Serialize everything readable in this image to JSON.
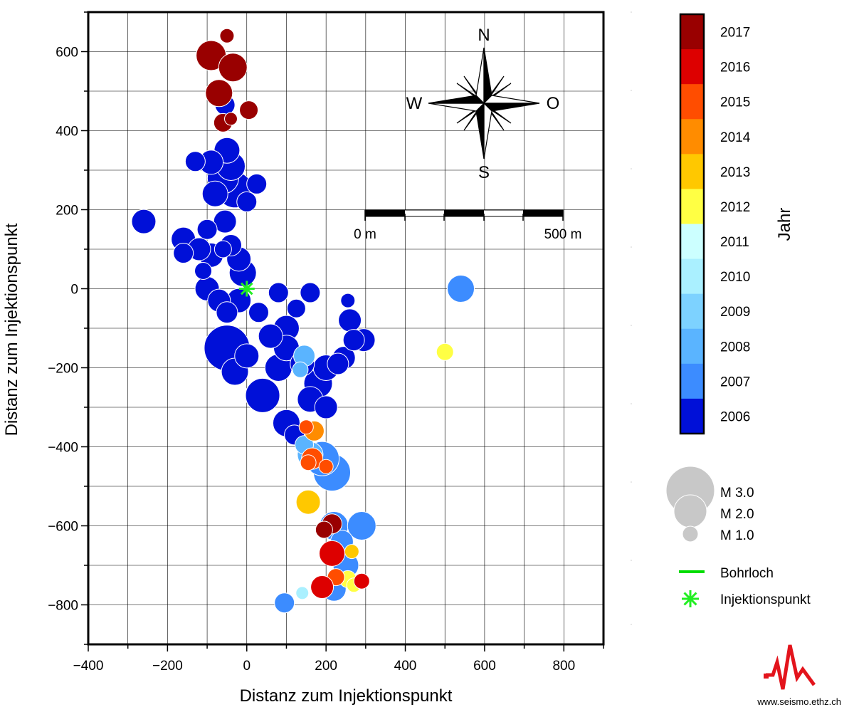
{
  "chart_data": {
    "type": "scatter",
    "xlabel": "Distanz zum Injektionspunkt",
    "ylabel": "Distanz zum Injektionspunkt",
    "xlim": [
      -400,
      900
    ],
    "ylim": [
      -900,
      700
    ],
    "xticks": [
      -400,
      -200,
      0,
      200,
      400,
      600,
      800
    ],
    "yticks": [
      -800,
      -600,
      -400,
      -200,
      0,
      200,
      400,
      600
    ],
    "xtick_labels": [
      "−400",
      "−200",
      "0",
      "200",
      "400",
      "600",
      "800"
    ],
    "ytick_labels": [
      "−800",
      "−600",
      "−400",
      "−200",
      "0",
      "200",
      "400",
      "600"
    ],
    "grid": true,
    "points": [
      {
        "x": -50,
        "y": 640,
        "m": 0.6,
        "year": 2017
      },
      {
        "x": -90,
        "y": 590,
        "m": 1.7,
        "year": 2017
      },
      {
        "x": -35,
        "y": 560,
        "m": 1.6,
        "year": 2017
      },
      {
        "x": -70,
        "y": 495,
        "m": 1.5,
        "year": 2017
      },
      {
        "x": 5,
        "y": 452,
        "m": 0.9,
        "year": 2017
      },
      {
        "x": -60,
        "y": 420,
        "m": 0.9,
        "year": 2017
      },
      {
        "x": -40,
        "y": 430,
        "m": 0.5,
        "year": 2017
      },
      {
        "x": -55,
        "y": 465,
        "m": 1.0,
        "year": 2006
      },
      {
        "x": -130,
        "y": 322,
        "m": 1.0,
        "year": 2006
      },
      {
        "x": -90,
        "y": 320,
        "m": 1.3,
        "year": 2006
      },
      {
        "x": -50,
        "y": 350,
        "m": 1.4,
        "year": 2006
      },
      {
        "x": -40,
        "y": 310,
        "m": 1.6,
        "year": 2006
      },
      {
        "x": -60,
        "y": 280,
        "m": 1.8,
        "year": 2006
      },
      {
        "x": -30,
        "y": 250,
        "m": 2.1,
        "year": 2006
      },
      {
        "x": -80,
        "y": 240,
        "m": 1.4,
        "year": 2006
      },
      {
        "x": 0,
        "y": 220,
        "m": 1.0,
        "year": 2006
      },
      {
        "x": 25,
        "y": 265,
        "m": 1.0,
        "year": 2006
      },
      {
        "x": -260,
        "y": 170,
        "m": 1.3,
        "year": 2006
      },
      {
        "x": -55,
        "y": 170,
        "m": 1.2,
        "year": 2006
      },
      {
        "x": -100,
        "y": 150,
        "m": 1.0,
        "year": 2006
      },
      {
        "x": -160,
        "y": 125,
        "m": 1.3,
        "year": 2006
      },
      {
        "x": -120,
        "y": 100,
        "m": 1.2,
        "year": 2006
      },
      {
        "x": -160,
        "y": 90,
        "m": 1.0,
        "year": 2006
      },
      {
        "x": -90,
        "y": 85,
        "m": 1.3,
        "year": 2006
      },
      {
        "x": -40,
        "y": 110,
        "m": 1.1,
        "year": 2006
      },
      {
        "x": -20,
        "y": 75,
        "m": 1.3,
        "year": 2006
      },
      {
        "x": -60,
        "y": 100,
        "m": 0.8,
        "year": 2006
      },
      {
        "x": -10,
        "y": 40,
        "m": 1.5,
        "year": 2006
      },
      {
        "x": -110,
        "y": 45,
        "m": 0.8,
        "year": 2006
      },
      {
        "x": -100,
        "y": 0,
        "m": 1.3,
        "year": 2006
      },
      {
        "x": -70,
        "y": -30,
        "m": 1.2,
        "year": 2006
      },
      {
        "x": -50,
        "y": -60,
        "m": 1.1,
        "year": 2006
      },
      {
        "x": -20,
        "y": -30,
        "m": 1.3,
        "year": 2006
      },
      {
        "x": 30,
        "y": -60,
        "m": 1.0,
        "year": 2006
      },
      {
        "x": 80,
        "y": -10,
        "m": 1.0,
        "year": 2006
      },
      {
        "x": 160,
        "y": -10,
        "m": 1.0,
        "year": 2006
      },
      {
        "x": 125,
        "y": -50,
        "m": 0.9,
        "year": 2006
      },
      {
        "x": 100,
        "y": -100,
        "m": 1.4,
        "year": 2006
      },
      {
        "x": 60,
        "y": -120,
        "m": 1.3,
        "year": 2006
      },
      {
        "x": -50,
        "y": -150,
        "m": 2.8,
        "year": 2006
      },
      {
        "x": 0,
        "y": -170,
        "m": 1.3,
        "year": 2006
      },
      {
        "x": -30,
        "y": -210,
        "m": 1.5,
        "year": 2006
      },
      {
        "x": 40,
        "y": -270,
        "m": 2.0,
        "year": 2006
      },
      {
        "x": 80,
        "y": -200,
        "m": 1.5,
        "year": 2006
      },
      {
        "x": 100,
        "y": -150,
        "m": 1.4,
        "year": 2006
      },
      {
        "x": 140,
        "y": -190,
        "m": 1.3,
        "year": 2006
      },
      {
        "x": 200,
        "y": -200,
        "m": 1.4,
        "year": 2006
      },
      {
        "x": 180,
        "y": -240,
        "m": 1.6,
        "year": 2006
      },
      {
        "x": 160,
        "y": -280,
        "m": 1.4,
        "year": 2006
      },
      {
        "x": 200,
        "y": -300,
        "m": 1.2,
        "year": 2006
      },
      {
        "x": 100,
        "y": -340,
        "m": 1.5,
        "year": 2006
      },
      {
        "x": 120,
        "y": -370,
        "m": 1.0,
        "year": 2006
      },
      {
        "x": 230,
        "y": -190,
        "m": 1.1,
        "year": 2006
      },
      {
        "x": 245,
        "y": -175,
        "m": 1.2,
        "year": 2006
      },
      {
        "x": 260,
        "y": -80,
        "m": 1.2,
        "year": 2006
      },
      {
        "x": 270,
        "y": -130,
        "m": 1.1,
        "year": 2006
      },
      {
        "x": 295,
        "y": -130,
        "m": 1.2,
        "year": 2006
      },
      {
        "x": 255,
        "y": -30,
        "m": 0.6,
        "year": 2006
      },
      {
        "x": 540,
        "y": 0,
        "m": 1.5,
        "year": 2007
      },
      {
        "x": 500,
        "y": -160,
        "m": 0.8,
        "year": 2012
      },
      {
        "x": 145,
        "y": -170,
        "m": 1.1,
        "year": 2008
      },
      {
        "x": 135,
        "y": -205,
        "m": 0.7,
        "year": 2008
      },
      {
        "x": 190,
        "y": -430,
        "m": 2.0,
        "year": 2007
      },
      {
        "x": 215,
        "y": -465,
        "m": 2.2,
        "year": 2007
      },
      {
        "x": 160,
        "y": -420,
        "m": 1.4,
        "year": 2008
      },
      {
        "x": 145,
        "y": -395,
        "m": 0.9,
        "year": 2008
      },
      {
        "x": 170,
        "y": -360,
        "m": 1.0,
        "year": 2014
      },
      {
        "x": 150,
        "y": -350,
        "m": 0.6,
        "year": 2015
      },
      {
        "x": 165,
        "y": -430,
        "m": 1.1,
        "year": 2015
      },
      {
        "x": 200,
        "y": -450,
        "m": 0.6,
        "year": 2015
      },
      {
        "x": 155,
        "y": -440,
        "m": 0.7,
        "year": 2015
      },
      {
        "x": 155,
        "y": -540,
        "m": 1.3,
        "year": 2013
      },
      {
        "x": 220,
        "y": -600,
        "m": 1.6,
        "year": 2007
      },
      {
        "x": 290,
        "y": -600,
        "m": 1.6,
        "year": 2007
      },
      {
        "x": 240,
        "y": -640,
        "m": 1.2,
        "year": 2007
      },
      {
        "x": 250,
        "y": -700,
        "m": 1.4,
        "year": 2007
      },
      {
        "x": 220,
        "y": -760,
        "m": 1.3,
        "year": 2007
      },
      {
        "x": 95,
        "y": -795,
        "m": 1.0,
        "year": 2007
      },
      {
        "x": 140,
        "y": -770,
        "m": 0.5,
        "year": 2010
      },
      {
        "x": 215,
        "y": -595,
        "m": 1.0,
        "year": 2017
      },
      {
        "x": 195,
        "y": -610,
        "m": 0.8,
        "year": 2017
      },
      {
        "x": 215,
        "y": -670,
        "m": 1.4,
        "year": 2016
      },
      {
        "x": 265,
        "y": -665,
        "m": 0.6,
        "year": 2013
      },
      {
        "x": 255,
        "y": -735,
        "m": 0.8,
        "year": 2012
      },
      {
        "x": 225,
        "y": -730,
        "m": 0.8,
        "year": 2015
      },
      {
        "x": 190,
        "y": -755,
        "m": 1.2,
        "year": 2016
      },
      {
        "x": 290,
        "y": -740,
        "m": 0.7,
        "year": 2016
      },
      {
        "x": 270,
        "y": -750,
        "m": 0.6,
        "year": 2012
      }
    ],
    "injection_point": {
      "x": 0,
      "y": 0
    },
    "colorbar": {
      "label": "Jahr",
      "years": [
        "2017",
        "2016",
        "2015",
        "2014",
        "2013",
        "2012",
        "2011",
        "2010",
        "2009",
        "2008",
        "2007",
        "2006"
      ],
      "colors": [
        "#990000",
        "#dd0000",
        "#ff4d00",
        "#ff8c00",
        "#ffc800",
        "#ffff44",
        "#ccffff",
        "#aaf0ff",
        "#7dd2ff",
        "#5ab4ff",
        "#3c8cff",
        "#0010d8"
      ]
    },
    "legend": {
      "magnitudes": [
        {
          "label": "M 3.0",
          "m": 3.0
        },
        {
          "label": "M 2.0",
          "m": 2.0
        },
        {
          "label": "M 1.0",
          "m": 1.0
        }
      ],
      "bohrloch_label": "Bohrloch",
      "injektionspunkt_label": "Injektionspunkt",
      "bohrloch_color": "#00dd00",
      "marker_color": "#22ee22"
    },
    "scale_bar": {
      "start_label": "0 m",
      "end_label": "500 m"
    },
    "compass": {
      "n": "N",
      "s": "S",
      "w": "W",
      "e": "O"
    }
  },
  "logo": {
    "url_text": "www.seismo.ethz.ch",
    "color": "#e3141c"
  }
}
